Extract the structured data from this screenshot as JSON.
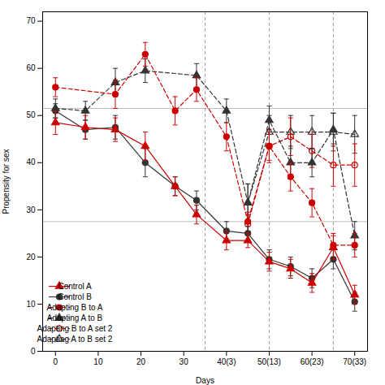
{
  "chart_data": {
    "type": "line",
    "xlabel": "Days",
    "ylabel": "Propensity for sex",
    "xlim": [
      -3,
      73
    ],
    "xticks": [
      0,
      10,
      20,
      30,
      {
        "value": 40,
        "label": "40(3)"
      },
      {
        "value": 50,
        "label": "50(13)"
      },
      {
        "value": 60,
        "label": "60(23)"
      },
      {
        "value": 70,
        "label": "70(33)"
      }
    ],
    "ylim": [
      0,
      72
    ],
    "yticks": [
      0,
      10,
      20,
      30,
      40,
      50,
      60,
      70
    ],
    "hlines": [
      27.5,
      51.5
    ],
    "vlines": [
      35,
      50,
      65
    ],
    "grid": false,
    "legend": "lower left",
    "series": [
      {
        "name": "Control A",
        "color": "#cc0000",
        "marker": "triangle",
        "line_style": "solid",
        "x": [
          0,
          7,
          14,
          21,
          28,
          33,
          40,
          45,
          50,
          55,
          60,
          65,
          70
        ],
        "values": [
          48.5,
          47.5,
          47.0,
          43.5,
          35.0,
          29.0,
          23.5,
          23.5,
          19.0,
          17.5,
          14.5,
          22.0,
          12.0
        ],
        "yerr": [
          2.5,
          2.5,
          2.5,
          3.0,
          2.0,
          2.0,
          2.0,
          1.5,
          2.0,
          2.0,
          2.0,
          2.5,
          2.0
        ]
      },
      {
        "name": "Control B",
        "color": "#333333",
        "marker": "circle",
        "line_style": "solid",
        "x": [
          0,
          7,
          14,
          21,
          28,
          33,
          40,
          45,
          50,
          55,
          60,
          65,
          70
        ],
        "values": [
          51.0,
          47.0,
          47.5,
          40.0,
          35.0,
          32.0,
          25.5,
          25.0,
          19.5,
          18.0,
          15.5,
          19.5,
          10.5
        ],
        "yerr": [
          1.5,
          2.0,
          2.5,
          3.0,
          2.0,
          2.0,
          2.0,
          1.5,
          2.0,
          2.0,
          2.0,
          2.0,
          2.0
        ]
      },
      {
        "name": "Adapting B to A",
        "color": "#cc0000",
        "marker": "circle",
        "line_style": "dashed",
        "x": [
          0,
          14,
          21,
          28,
          33,
          40,
          45,
          50,
          55,
          60,
          65,
          70
        ],
        "values": [
          56.0,
          54.5,
          63.0,
          51.0,
          55.5,
          45.5,
          27.5,
          43.5,
          37.0,
          31.5,
          22.5,
          22.5
        ],
        "yerr": [
          2.0,
          3.0,
          2.5,
          3.0,
          2.5,
          3.0,
          2.0,
          3.0,
          3.0,
          3.0,
          2.5,
          2.5
        ]
      },
      {
        "name": "Adapting A to B",
        "color": "#333333",
        "marker": "triangle",
        "line_style": "dashed",
        "x": [
          0,
          7,
          14,
          21,
          33,
          40,
          45,
          50,
          55,
          60,
          65,
          70
        ],
        "values": [
          51.5,
          51.0,
          57.0,
          59.5,
          58.5,
          51.0,
          31.5,
          49.0,
          40.0,
          40.0,
          47.0,
          24.5
        ],
        "yerr": [
          2.0,
          2.0,
          3.0,
          2.5,
          2.5,
          2.5,
          4.0,
          3.0,
          3.5,
          3.0,
          3.5,
          3.0
        ]
      },
      {
        "name": "Adapting B to A set 2",
        "color": "#cc0000",
        "marker": "circle-open",
        "line_style": "dashed",
        "x": [
          45,
          50,
          55,
          60,
          65,
          70
        ],
        "values": [
          27.0,
          43.5,
          45.5,
          42.5,
          39.5,
          39.5
        ],
        "yerr": [
          2.0,
          3.5,
          4.0,
          3.5,
          4.5,
          4.5
        ]
      },
      {
        "name": "Adapting A to B set 2",
        "color": "#333333",
        "marker": "triangle-open",
        "line_style": "dashed",
        "x": [
          45,
          50,
          55,
          60,
          65,
          70
        ],
        "values": [
          31.5,
          46.5,
          46.5,
          46.5,
          46.5,
          46.0
        ],
        "yerr": [
          4.0,
          3.5,
          3.5,
          3.5,
          4.0,
          4.0
        ]
      }
    ]
  }
}
